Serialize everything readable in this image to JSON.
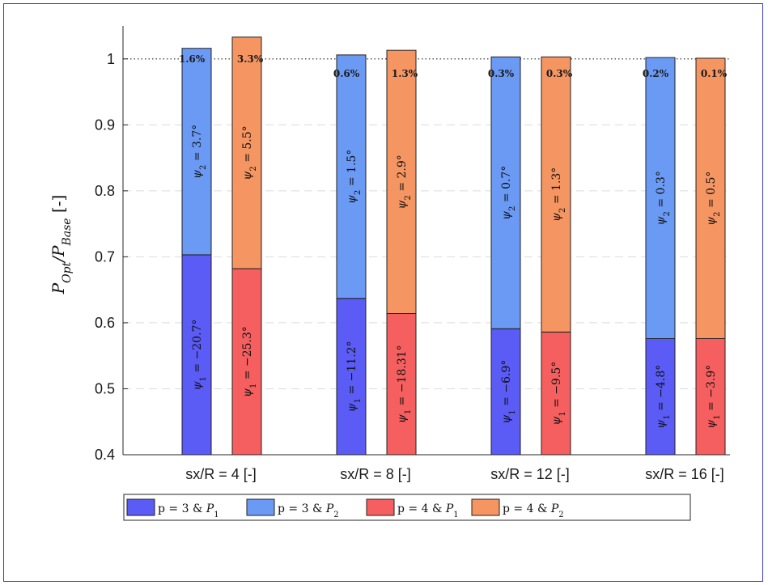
{
  "chart_data": {
    "type": "bar",
    "stacked": true,
    "categories": [
      "sx/R = 4 [-]",
      "sx/R = 8 [-]",
      "sx/R = 12 [-]",
      "sx/R = 16 [-]"
    ],
    "ylabel": "P_{Opt}/P_{Base} [-]",
    "ylim": [
      0.4,
      1.05
    ],
    "yticks": [
      0.4,
      0.5,
      0.6,
      0.7,
      0.8,
      0.9,
      1
    ],
    "ytick_labels": [
      "0.4",
      "0.5",
      "0.6",
      "0.7",
      "0.8",
      "0.9",
      "1"
    ],
    "grid": "horizontal dashed",
    "reference_line": 1,
    "legend_position": "bottom",
    "colors": {
      "p3_P1": "#5b5bf5",
      "p3_P2": "#6b9af5",
      "p4_P1": "#f55f5f",
      "p4_P2": "#f59562"
    },
    "legend": [
      {
        "main": "p = 3 & ",
        "var": "P",
        "sub": "1",
        "color_key": "p3_P1"
      },
      {
        "main": "p = 3 & ",
        "var": "P",
        "sub": "2",
        "color_key": "p3_P2"
      },
      {
        "main": "p = 4 & ",
        "var": "P",
        "sub": "1",
        "color_key": "p4_P1"
      },
      {
        "main": "p = 4 & ",
        "var": "P",
        "sub": "2",
        "color_key": "p4_P2"
      }
    ],
    "series": [
      {
        "name": "p = 3",
        "P1": [
          0.703,
          0.637,
          0.591,
          0.576
        ],
        "total": [
          1.016,
          1.006,
          1.003,
          1.002
        ],
        "pct": [
          "1.6%",
          "0.6%",
          "0.3%",
          "0.2%"
        ],
        "psi1": [
          "−20.7°",
          "−11.2°",
          "−6.9°",
          "−4.8°"
        ],
        "psi2": [
          "3.7°",
          "1.5°",
          "0.7°",
          "0.3°"
        ],
        "c1": "p3_P1",
        "c2": "p3_P2"
      },
      {
        "name": "p = 4",
        "P1": [
          0.682,
          0.614,
          0.586,
          0.576
        ],
        "total": [
          1.033,
          1.013,
          1.003,
          1.001
        ],
        "pct": [
          "3.3%",
          "1.3%",
          "0.3%",
          "0.1%"
        ],
        "psi1": [
          "−25.3°",
          "−18.31°",
          "−9.5°",
          "−3.9°"
        ],
        "psi2": [
          "5.5°",
          "2.9°",
          "1.3°",
          "0.5°"
        ],
        "c1": "p4_P1",
        "c2": "p4_P2"
      }
    ]
  }
}
